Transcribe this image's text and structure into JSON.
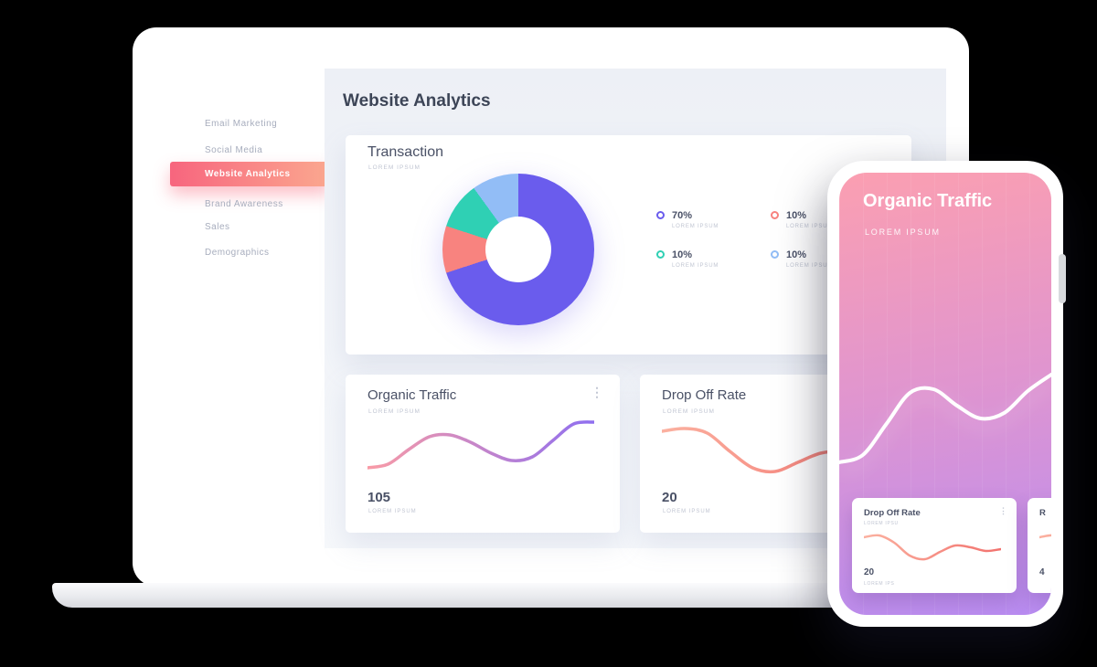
{
  "ui": {
    "kebab_icon": "⋮"
  },
  "sidebar": {
    "items": [
      {
        "label": "Email Marketing",
        "active": false
      },
      {
        "label": "Social Media",
        "active": false
      },
      {
        "label": "Website Analytics",
        "active": true
      },
      {
        "label": "Brand Awareness",
        "active": false
      },
      {
        "label": "Sales",
        "active": false
      },
      {
        "label": "Demographics",
        "active": false
      }
    ],
    "active_gradient": [
      "#f7657e",
      "#fba88f"
    ]
  },
  "main": {
    "page_title": "Website Analytics"
  },
  "transaction_card": {
    "title": "Transaction",
    "subtitle": "LOREM IPSUM",
    "legend": [
      {
        "value": "70%",
        "label": "LOREM IPSUM"
      },
      {
        "value": "10%",
        "label": "LOREM IPSUM"
      },
      {
        "value": "10%",
        "label": "LOREM IPSUM"
      },
      {
        "value": "10%",
        "label": "LOREM IPSUM"
      }
    ]
  },
  "organic_card": {
    "title": "Organic Traffic",
    "subtitle": "LOREM IPSUM",
    "value": "105",
    "value_label": "LOREM IPSUM"
  },
  "dropoff_card": {
    "title": "Drop Off Rate",
    "subtitle": "LOREM IPSUM",
    "value": "20",
    "value_label": "LOREM IPSUM"
  },
  "phone": {
    "title": "Organic Traffic",
    "subtitle": "LOREM IPSUM",
    "cards": [
      {
        "title": "Drop Off Rate",
        "subtitle": "LOREM IPSU",
        "value": "20",
        "value_label": "LOREM IPS"
      },
      {
        "title": "R",
        "subtitle": "",
        "value": "4",
        "value_label": ""
      }
    ]
  },
  "chart_data": [
    {
      "type": "pie",
      "title": "Transaction",
      "labels": [
        "LOREM IPSUM",
        "LOREM IPSUM",
        "LOREM IPSUM",
        "LOREM IPSUM"
      ],
      "values": [
        70,
        10,
        10,
        10
      ],
      "colors": [
        "#6a5ced",
        "#f8837f",
        "#2fd0b4",
        "#92bdf6"
      ],
      "hole": 0.43,
      "legend_position": "right"
    },
    {
      "type": "line",
      "title": "Organic Traffic",
      "value": 105,
      "points_y": [
        56,
        52,
        36,
        22,
        20,
        28,
        40,
        48,
        44,
        26,
        8,
        6
      ],
      "ylim": [
        0,
        70
      ],
      "stroke_gradient": [
        "#f99ba6",
        "#8f6ff0"
      ]
    },
    {
      "type": "line",
      "title": "Drop Off Rate",
      "value": 20,
      "points_y": [
        16,
        13,
        18,
        38,
        56,
        60,
        50,
        40,
        38,
        45,
        42
      ],
      "ylim": [
        0,
        70
      ],
      "stroke_gradient": [
        "#fbb1a0",
        "#f2726e"
      ]
    },
    {
      "type": "line",
      "title": "Organic Traffic (phone)",
      "points_y": [
        112,
        104,
        70,
        36,
        32,
        50,
        64,
        58,
        34,
        16
      ],
      "ylim": [
        0,
        140
      ],
      "stroke_gradient": [
        "#ffffff",
        "#ffffff"
      ]
    },
    {
      "type": "line",
      "title": "Drop Off Rate (phone mini)",
      "value": 20,
      "points_y": [
        10,
        8,
        16,
        30,
        34,
        26,
        19,
        21,
        25,
        23
      ],
      "ylim": [
        0,
        42
      ],
      "stroke_gradient": [
        "#fbb1a0",
        "#f2726e"
      ]
    }
  ]
}
